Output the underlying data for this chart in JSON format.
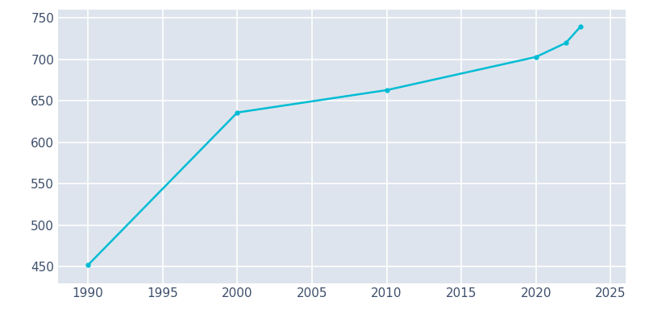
{
  "years": [
    1990,
    2000,
    2010,
    2020,
    2022,
    2023
  ],
  "population": [
    452,
    636,
    663,
    703,
    720,
    740
  ],
  "line_color": "#00BCD4",
  "fig_bg_color": "#ffffff",
  "plot_bg_color": "#dde4ed",
  "grid_color": "#ffffff",
  "tick_color": "#3d4f6b",
  "xlim": [
    1988,
    2026
  ],
  "ylim": [
    430,
    760
  ],
  "xticks": [
    1990,
    1995,
    2000,
    2005,
    2010,
    2015,
    2020,
    2025
  ],
  "yticks": [
    450,
    500,
    550,
    600,
    650,
    700,
    750
  ],
  "linewidth": 1.8,
  "marker": "o",
  "markersize": 3.5,
  "tick_fontsize": 11
}
